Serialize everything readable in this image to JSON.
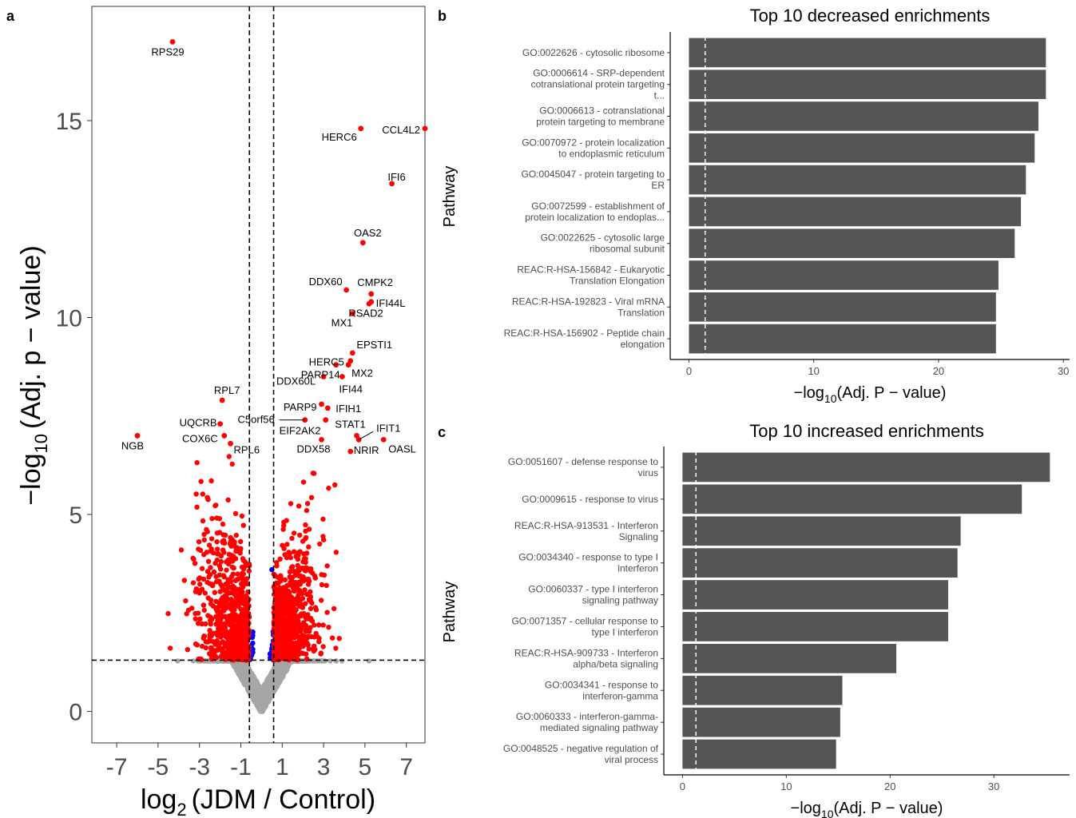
{
  "panel_letters": {
    "a": "a",
    "b": "b",
    "c": "c"
  },
  "colors": {
    "significant": "#ff0000",
    "fc_only": "#0000ff",
    "not_significant": "#a6a6a6",
    "bar": "#555555",
    "threshold_line": "#000000",
    "bar_threshold_line": "#ffffff"
  },
  "chart_data": [
    {
      "type": "scatter",
      "panel": "a",
      "xlabel": {
        "base": "log",
        "sub": "2",
        "rest": "(JDM / Control)"
      },
      "ylabel": {
        "base": "−log",
        "sub": "10",
        "rest": "(Adj. p − value)"
      },
      "xlim": [
        -8.2,
        7.9
      ],
      "ylim": [
        -0.8,
        17.9
      ],
      "xticks": [
        -7,
        -5,
        -3,
        -1,
        1,
        3,
        5,
        7
      ],
      "xtick_labels": [
        "-7",
        "-5",
        "-3",
        "-1",
        "1",
        "3",
        "5",
        "7"
      ],
      "yticks": [
        0,
        5,
        10,
        15
      ],
      "ytick_labels": [
        "0",
        "5",
        "10",
        "15"
      ],
      "thresholds": {
        "log2fc": [
          -0.585,
          0.585
        ],
        "neg_log10_p": 1.3
      },
      "grid": false,
      "labeled_points": [
        {
          "gene": "RPS29",
          "x": -4.3,
          "y": 17.0
        },
        {
          "gene": "CCL4L2",
          "x": 7.9,
          "y": 14.8
        },
        {
          "gene": "HERC6",
          "x": 4.8,
          "y": 14.8
        },
        {
          "gene": "IFI6",
          "x": 6.3,
          "y": 13.4
        },
        {
          "gene": "OAS2",
          "x": 4.9,
          "y": 11.9
        },
        {
          "gene": "DDX60",
          "x": 4.1,
          "y": 10.7
        },
        {
          "gene": "CMPK2",
          "x": 5.3,
          "y": 10.6
        },
        {
          "gene": "IFI44L",
          "x": 5.3,
          "y": 10.4
        },
        {
          "gene": "RSAD2",
          "x": 5.2,
          "y": 10.35
        },
        {
          "gene": "MX1",
          "x": 4.4,
          "y": 10.1
        },
        {
          "gene": "EPSTI1",
          "x": 4.4,
          "y": 9.1
        },
        {
          "gene": "HERC5",
          "x": 4.3,
          "y": 8.9
        },
        {
          "gene": "MX2",
          "x": 4.2,
          "y": 8.8
        },
        {
          "gene": "DDX60L",
          "x": 3.0,
          "y": 8.5
        },
        {
          "gene": "IFI44",
          "x": 3.9,
          "y": 8.5
        },
        {
          "gene": "PARP14",
          "x": 3.6,
          "y": 8.8
        },
        {
          "gene": "IFIH1",
          "x": 3.2,
          "y": 7.7
        },
        {
          "gene": "PARP9",
          "x": 2.9,
          "y": 7.8
        },
        {
          "gene": "C5orf56",
          "x": 2.1,
          "y": 7.4
        },
        {
          "gene": "IFIT1",
          "x": 4.7,
          "y": 6.9
        },
        {
          "gene": "STAT1",
          "x": 4.6,
          "y": 7.0
        },
        {
          "gene": "EIF2AK2",
          "x": 3.1,
          "y": 7.4
        },
        {
          "gene": "DDX58",
          "x": 2.9,
          "y": 6.9
        },
        {
          "gene": "OASL",
          "x": 5.9,
          "y": 6.9
        },
        {
          "gene": "NRIR",
          "x": 4.3,
          "y": 6.6
        },
        {
          "gene": "RPL7",
          "x": -1.9,
          "y": 7.9
        },
        {
          "gene": "UQCRB",
          "x": -2.0,
          "y": 7.3
        },
        {
          "gene": "COX6C",
          "x": -1.8,
          "y": 7.0
        },
        {
          "gene": "RPL6",
          "x": -1.5,
          "y": 6.8
        },
        {
          "gene": "NGB",
          "x": -6.0,
          "y": 7.0
        }
      ]
    },
    {
      "type": "bar",
      "orientation": "horizontal",
      "panel": "b",
      "title": "Top 10 decreased enrichments",
      "ylabel": "Pathway",
      "xlabel": {
        "base": "−log",
        "sub": "10",
        "rest": "(Adj. P − value)"
      },
      "xlim": [
        -1.5,
        30.5
      ],
      "xticks": [
        0,
        10,
        20,
        30
      ],
      "xtick_labels": [
        "0",
        "10",
        "20",
        "30"
      ],
      "threshold": 1.3,
      "categories": [
        [
          "GO:0022626 - cytosolic ribosome"
        ],
        [
          "GO:0006614 - SRP-dependent",
          "cotranslational protein targeting",
          "t..."
        ],
        [
          "GO:0006613 - cotranslational",
          "protein targeting to membrane"
        ],
        [
          "GO:0070972 - protein localization",
          "to endoplasmic reticulum"
        ],
        [
          "GO:0045047 - protein targeting to",
          "ER"
        ],
        [
          "GO:0072599 - establishment of",
          "protein localization to endoplas..."
        ],
        [
          "GO:0022625 - cytosolic large",
          "ribosomal subunit"
        ],
        [
          "REAC:R-HSA-156842 - Eukaryotic",
          "Translation Elongation"
        ],
        [
          "REAC:R-HSA-192823 - Viral mRNA",
          "Translation"
        ],
        [
          "REAC:R-HSA-156902 - Peptide chain",
          "elongation"
        ]
      ],
      "values": [
        28.6,
        28.6,
        28.0,
        27.7,
        27.0,
        26.6,
        26.1,
        24.8,
        24.6,
        24.6
      ]
    },
    {
      "type": "bar",
      "orientation": "horizontal",
      "panel": "c",
      "title": "Top 10 increased enrichments",
      "ylabel": "Pathway",
      "xlabel": {
        "base": "−log",
        "sub": "10",
        "rest": "(Adj. P − value)"
      },
      "xlim": [
        -1.8,
        37.3
      ],
      "xticks": [
        0,
        10,
        20,
        30
      ],
      "xtick_labels": [
        "0",
        "10",
        "20",
        "30"
      ],
      "threshold": 1.3,
      "categories": [
        [
          "GO:0051607 - defense response to",
          "virus"
        ],
        [
          "GO:0009615 - response to virus"
        ],
        [
          "REAC:R-HSA-913531 - Interferon",
          "Signaling"
        ],
        [
          "GO:0034340 - response to type I",
          "interferon"
        ],
        [
          "GO:0060337 - type I interferon",
          "signaling pathway"
        ],
        [
          "GO:0071357 - cellular response to",
          "type I interferon"
        ],
        [
          "REAC:R-HSA-909733 - Interferon",
          "alpha/beta signaling"
        ],
        [
          "GO:0034341 - response to",
          "interferon-gamma"
        ],
        [
          "GO:0060333 - interferon-gamma-",
          "mediated signaling pathway"
        ],
        [
          "GO:0048525 - negative regulation of",
          "viral process"
        ]
      ],
      "values": [
        35.4,
        32.7,
        26.8,
        26.5,
        25.6,
        25.6,
        20.6,
        15.4,
        15.2,
        14.8
      ]
    }
  ]
}
